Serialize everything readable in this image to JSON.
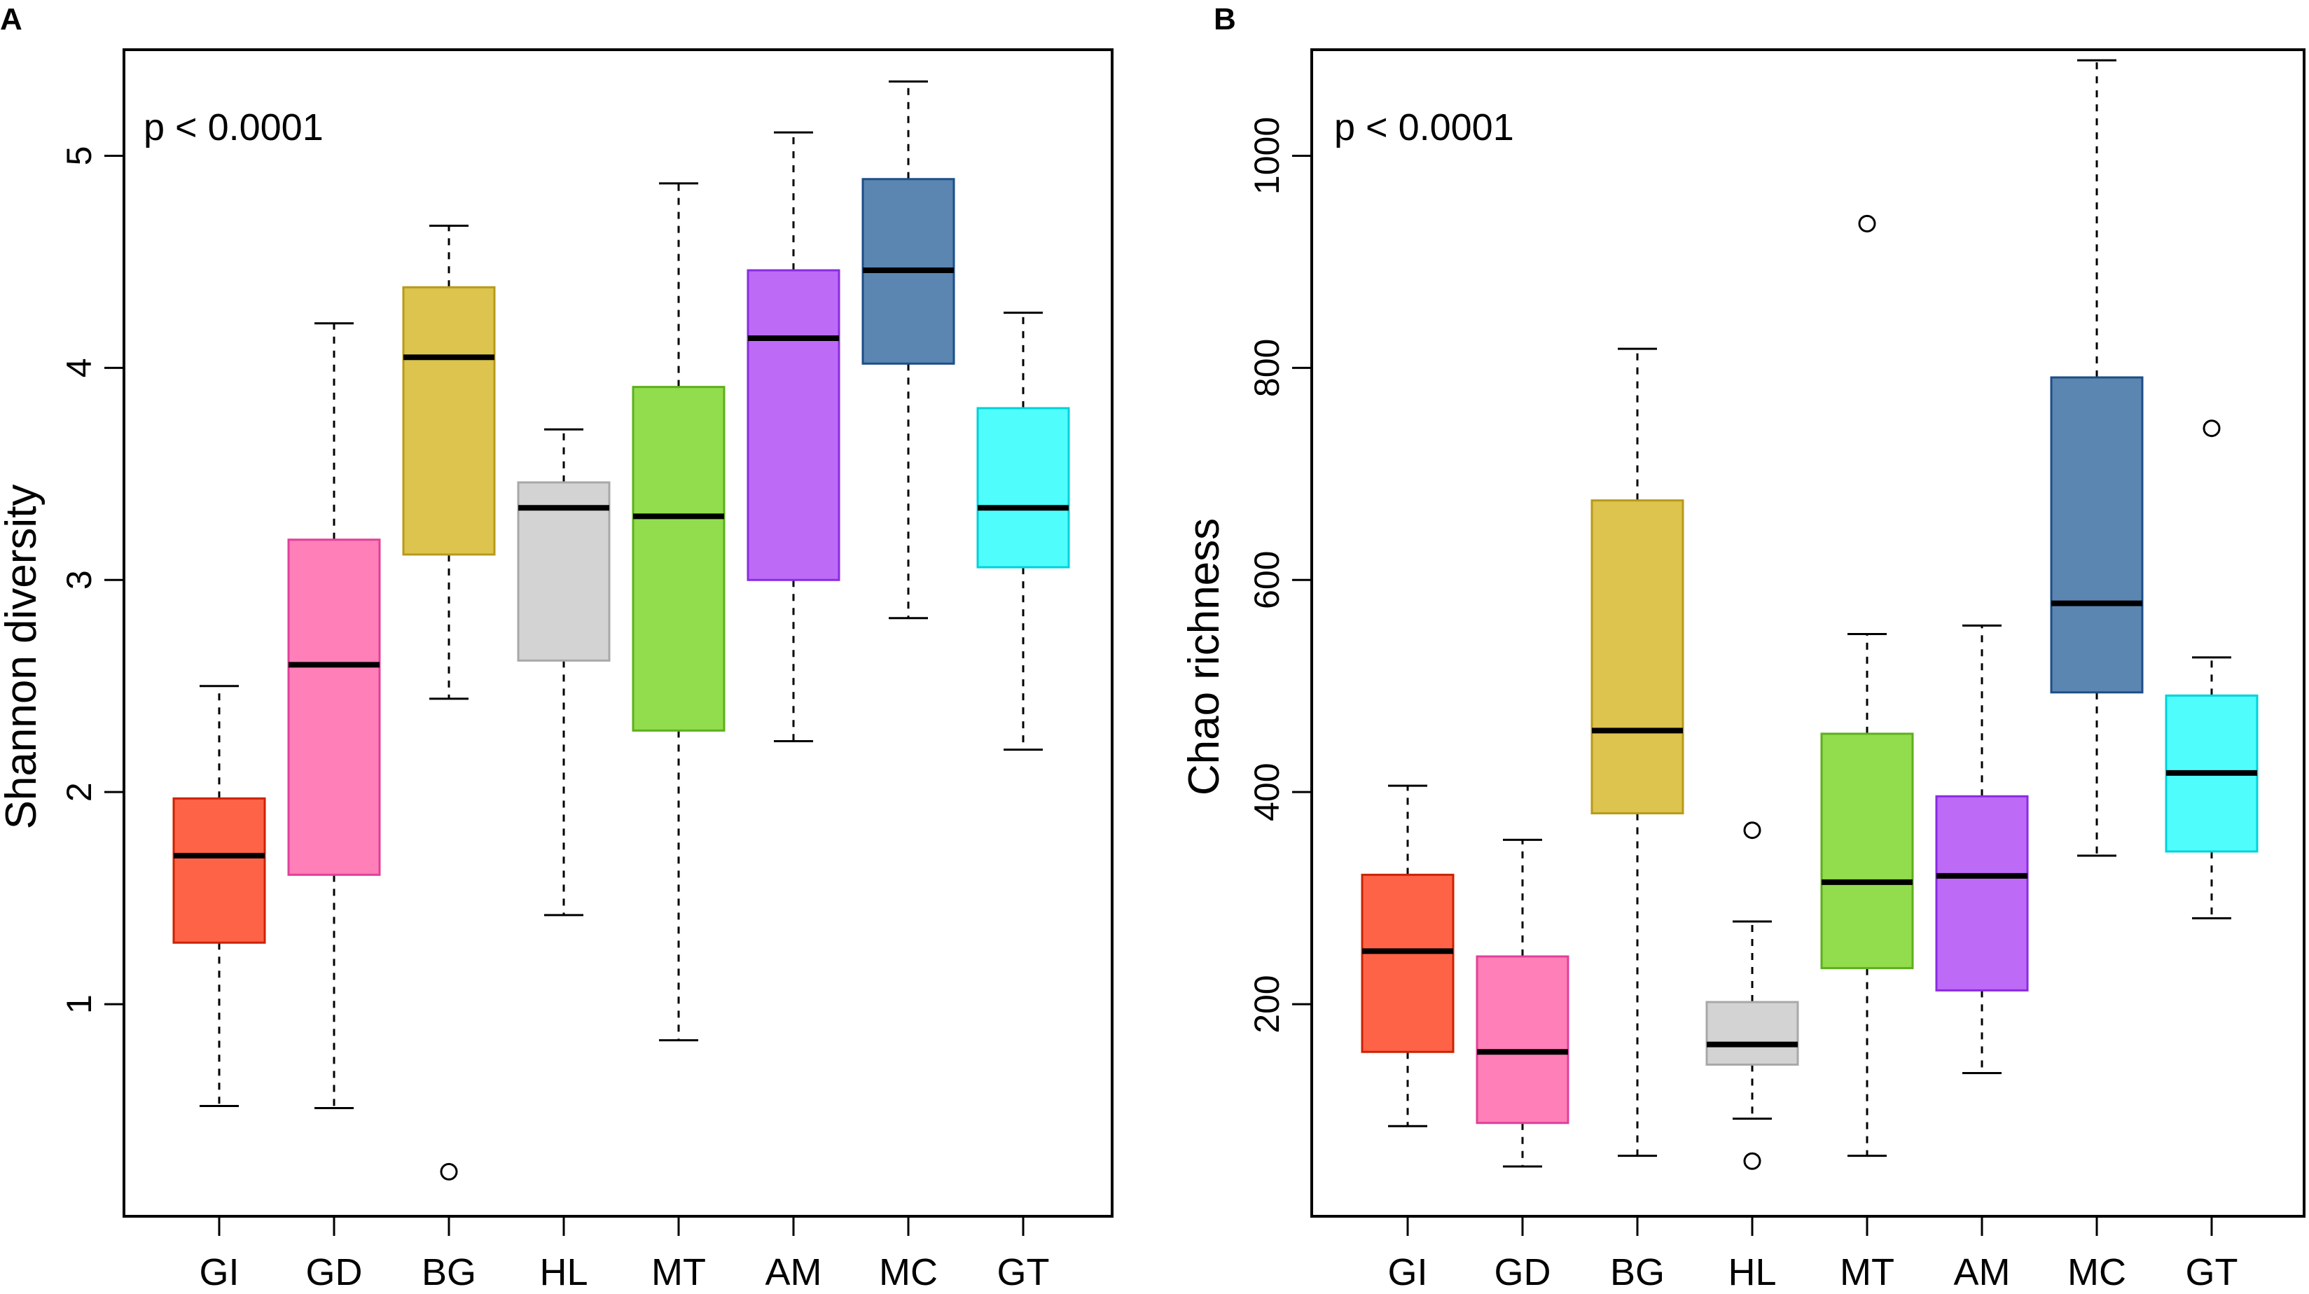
{
  "chart_data": [
    {
      "panel_label": "A",
      "type": "boxplot",
      "ylabel": "Shannon diversity",
      "xlabel": "",
      "annotation": "p < 0.0001",
      "ylim": [
        0.0,
        5.5
      ],
      "yticks": [
        1,
        2,
        3,
        4,
        5
      ],
      "categories": [
        "GI",
        "GD",
        "BG",
        "HL",
        "MT",
        "AM",
        "MC",
        "GT"
      ],
      "boxes": [
        {
          "name": "GI",
          "color": "#FF6347",
          "border": "#CC2200",
          "min": 0.52,
          "q1": 1.29,
          "median": 1.7,
          "q3": 1.97,
          "max": 2.5,
          "outliers": []
        },
        {
          "name": "GD",
          "color": "#FF7FB8",
          "border": "#E0409A",
          "min": 0.51,
          "q1": 1.61,
          "median": 2.6,
          "q3": 3.19,
          "max": 4.21,
          "outliers": []
        },
        {
          "name": "BG",
          "color": "#DCC44E",
          "border": "#B89A1A",
          "min": 2.44,
          "q1": 3.12,
          "median": 4.05,
          "q3": 4.38,
          "max": 4.67,
          "outliers": [
            0.21
          ]
        },
        {
          "name": "HL",
          "color": "#D3D3D3",
          "border": "#A8A8A8",
          "min": 1.42,
          "q1": 2.62,
          "median": 3.34,
          "q3": 3.46,
          "max": 3.71,
          "outliers": []
        },
        {
          "name": "MT",
          "color": "#92DD4E",
          "border": "#5EAF1E",
          "min": 0.83,
          "q1": 2.29,
          "median": 3.3,
          "q3": 3.91,
          "max": 4.87,
          "outliers": []
        },
        {
          "name": "AM",
          "color": "#BD6BF7",
          "border": "#8A2BE2",
          "min": 2.24,
          "q1": 3.0,
          "median": 4.14,
          "q3": 4.46,
          "max": 5.11,
          "outliers": []
        },
        {
          "name": "MC",
          "color": "#5A86B1",
          "border": "#1E4E88",
          "min": 2.82,
          "q1": 4.02,
          "median": 4.46,
          "q3": 4.89,
          "max": 5.35,
          "outliers": []
        },
        {
          "name": "GT",
          "color": "#4FFDFD",
          "border": "#00D2DA",
          "min": 2.2,
          "q1": 3.06,
          "median": 3.34,
          "q3": 3.81,
          "max": 4.26,
          "outliers": []
        }
      ]
    },
    {
      "panel_label": "B",
      "type": "boxplot",
      "ylabel": "Chao richness",
      "xlabel": "",
      "annotation": "p < 0.0001",
      "ylim": [
        0,
        1100
      ],
      "yticks": [
        200,
        400,
        600,
        800,
        1000
      ],
      "categories": [
        "GI",
        "GD",
        "BG",
        "HL",
        "MT",
        "AM",
        "MC",
        "GT"
      ],
      "boxes": [
        {
          "name": "GI",
          "color": "#FF6347",
          "border": "#CC2200",
          "min": 85,
          "q1": 155,
          "median": 250,
          "q3": 322,
          "max": 406,
          "outliers": []
        },
        {
          "name": "GD",
          "color": "#FF7FB8",
          "border": "#E0409A",
          "min": 47,
          "q1": 88,
          "median": 155,
          "q3": 245,
          "max": 355,
          "outliers": []
        },
        {
          "name": "BG",
          "color": "#DCC44E",
          "border": "#B89A1A",
          "min": 57,
          "q1": 380,
          "median": 458,
          "q3": 675,
          "max": 818,
          "outliers": []
        },
        {
          "name": "HL",
          "color": "#D3D3D3",
          "border": "#A8A8A8",
          "min": 92,
          "q1": 143,
          "median": 162,
          "q3": 202,
          "max": 278,
          "outliers": [
            364,
            52
          ]
        },
        {
          "name": "MT",
          "color": "#92DD4E",
          "border": "#5EAF1E",
          "min": 57,
          "q1": 234,
          "median": 315,
          "q3": 455,
          "max": 549,
          "outliers": [
            936
          ]
        },
        {
          "name": "AM",
          "color": "#BD6BF7",
          "border": "#8A2BE2",
          "min": 135,
          "q1": 213,
          "median": 321,
          "q3": 396,
          "max": 557,
          "outliers": []
        },
        {
          "name": "MC",
          "color": "#5A86B1",
          "border": "#1E4E88",
          "min": 340,
          "q1": 494,
          "median": 578,
          "q3": 791,
          "max": 1090,
          "outliers": []
        },
        {
          "name": "GT",
          "color": "#4FFDFD",
          "border": "#00D2DA",
          "min": 281,
          "q1": 344,
          "median": 418,
          "q3": 491,
          "max": 527,
          "outliers": [
            743
          ]
        }
      ]
    }
  ]
}
